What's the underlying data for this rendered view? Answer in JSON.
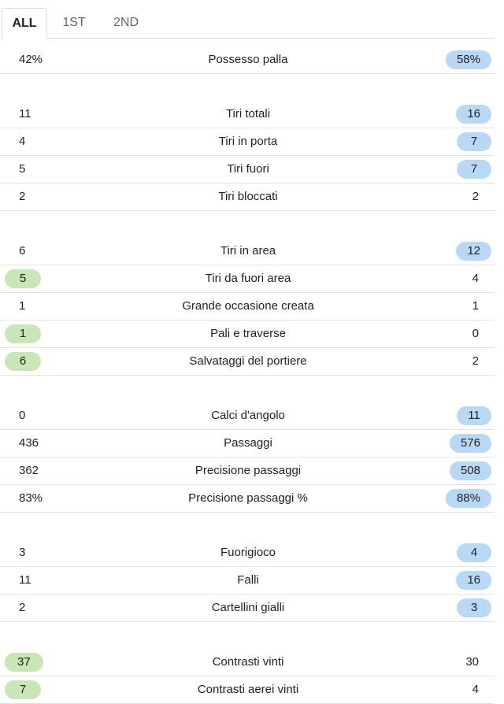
{
  "tabs": [
    {
      "label": "ALL",
      "active": true
    },
    {
      "label": "1ST",
      "active": false
    },
    {
      "label": "2ND",
      "active": false
    }
  ],
  "colors": {
    "home_highlight": "#c8e6b6",
    "away_highlight": "#b9d8f6",
    "divider": "#e3e3e3"
  },
  "groups": [
    {
      "rows": [
        {
          "home": "42%",
          "label": "Possesso palla",
          "away": "58%",
          "leader": "away"
        }
      ]
    },
    {
      "rows": [
        {
          "home": "11",
          "label": "Tiri totali",
          "away": "16",
          "leader": "away"
        },
        {
          "home": "4",
          "label": "Tiri in porta",
          "away": "7",
          "leader": "away"
        },
        {
          "home": "5",
          "label": "Tiri fuori",
          "away": "7",
          "leader": "away"
        },
        {
          "home": "2",
          "label": "Tiri bloccati",
          "away": "2",
          "leader": "none"
        }
      ]
    },
    {
      "rows": [
        {
          "home": "6",
          "label": "Tiri in area",
          "away": "12",
          "leader": "away"
        },
        {
          "home": "5",
          "label": "Tiri da fuori area",
          "away": "4",
          "leader": "home"
        },
        {
          "home": "1",
          "label": "Grande occasione creata",
          "away": "1",
          "leader": "none"
        },
        {
          "home": "1",
          "label": "Pali e traverse",
          "away": "0",
          "leader": "home"
        },
        {
          "home": "6",
          "label": "Salvataggi del portiere",
          "away": "2",
          "leader": "home"
        }
      ]
    },
    {
      "rows": [
        {
          "home": "0",
          "label": "Calci d'angolo",
          "away": "11",
          "leader": "away"
        },
        {
          "home": "436",
          "label": "Passaggi",
          "away": "576",
          "leader": "away"
        },
        {
          "home": "362",
          "label": "Precisione passaggi",
          "away": "508",
          "leader": "away"
        },
        {
          "home": "83%",
          "label": "Precisione passaggi %",
          "away": "88%",
          "leader": "away"
        }
      ]
    },
    {
      "rows": [
        {
          "home": "3",
          "label": "Fuorigioco",
          "away": "4",
          "leader": "away"
        },
        {
          "home": "11",
          "label": "Falli",
          "away": "16",
          "leader": "away"
        },
        {
          "home": "2",
          "label": "Cartellini gialli",
          "away": "3",
          "leader": "away"
        }
      ]
    },
    {
      "rows": [
        {
          "home": "37",
          "label": "Contrasti vinti",
          "away": "30",
          "leader": "home"
        },
        {
          "home": "7",
          "label": "Contrasti aerei vinti",
          "away": "4",
          "leader": "home"
        }
      ]
    }
  ]
}
